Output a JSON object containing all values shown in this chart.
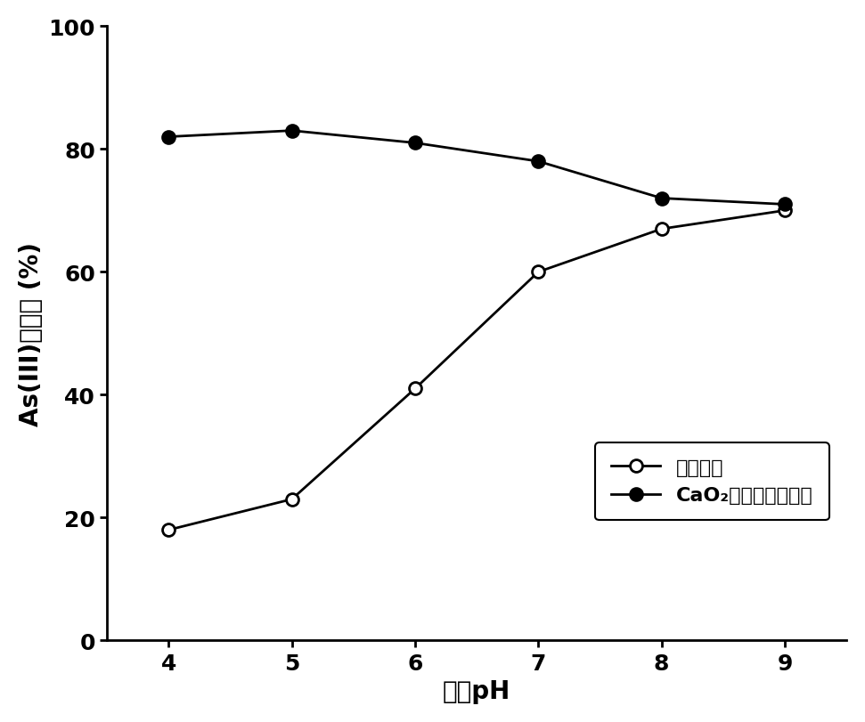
{
  "x": [
    4,
    5,
    6,
    7,
    8,
    9
  ],
  "series1_y": [
    18,
    23,
    41,
    60,
    67,
    70
  ],
  "series2_y": [
    82,
    83,
    81,
    78,
    72,
    71
  ],
  "series1_label": "直接混凝",
  "series2_label": "CaO₂预氧化强化混凝",
  "xlabel": "溶液pH",
  "ylabel": "As(III)去除率 (%)",
  "xlim": [
    3.5,
    9.5
  ],
  "ylim": [
    0,
    100
  ],
  "yticks": [
    0,
    20,
    40,
    60,
    80,
    100
  ],
  "xticks": [
    4,
    5,
    6,
    7,
    8,
    9
  ],
  "line_color": "#000000",
  "markersize": 10,
  "linewidth": 2.0,
  "label_fontsize": 20,
  "tick_fontsize": 18,
  "legend_fontsize": 16,
  "background_color": "#ffffff"
}
